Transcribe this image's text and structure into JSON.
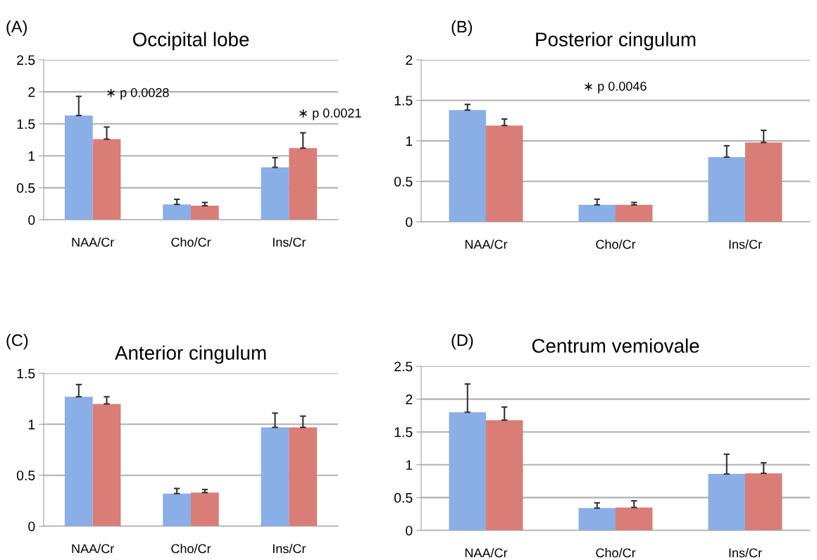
{
  "chart_data": [
    {
      "type": "bar",
      "title": "Occipital lobe",
      "categories": [
        "NAA/Cr",
        "Cho/Cr",
        "Ins/Cr"
      ],
      "ylim": [
        0,
        2.5
      ],
      "yticks": [
        0,
        0.5,
        1,
        1.5,
        2,
        2.5
      ],
      "grid": "y",
      "series": [
        {
          "color": "#8aaee6",
          "values": [
            1.63,
            0.24,
            0.82
          ],
          "errors": [
            [
              1.63,
              1.93
            ],
            [
              0.24,
              0.32
            ],
            [
              0.82,
              0.97
            ]
          ]
        },
        {
          "color": "#d97d76",
          "values": [
            1.26,
            0.22,
            1.12
          ],
          "errors": [
            [
              1.26,
              1.45
            ],
            [
              0.22,
              0.27
            ],
            [
              1.12,
              1.36
            ]
          ]
        }
      ],
      "annotations": [
        "(A)",
        "∗ p 0.0028",
        "∗ p 0.0021"
      ]
    },
    {
      "type": "bar",
      "title": "Posterior cingulum",
      "categories": [
        "NAA/Cr",
        "Cho/Cr",
        "Ins/Cr"
      ],
      "ylim": [
        0,
        2
      ],
      "yticks": [
        0,
        0.5,
        1,
        1.5,
        2
      ],
      "grid": "y",
      "series": [
        {
          "color": "#8aaee6",
          "values": [
            1.38,
            0.21,
            0.8
          ],
          "errors": [
            [
              1.38,
              1.45
            ],
            [
              0.21,
              0.28
            ],
            [
              0.8,
              0.94
            ]
          ]
        },
        {
          "color": "#d97d76",
          "values": [
            1.19,
            0.21,
            0.98
          ],
          "errors": [
            [
              1.19,
              1.27
            ],
            [
              0.21,
              0.24
            ],
            [
              0.98,
              1.13
            ]
          ]
        }
      ],
      "annotations": [
        "(B)",
        "∗ p 0.0046"
      ]
    },
    {
      "type": "bar",
      "title": "Anterior cingulum",
      "categories": [
        "NAA/Cr",
        "Cho/Cr",
        "Ins/Cr"
      ],
      "ylim": [
        0,
        1.5
      ],
      "yticks": [
        0,
        0.5,
        1,
        1.5
      ],
      "grid": "y",
      "series": [
        {
          "color": "#8aaee6",
          "values": [
            1.27,
            0.32,
            0.97
          ],
          "errors": [
            [
              1.27,
              1.39
            ],
            [
              0.32,
              0.37
            ],
            [
              0.97,
              1.11
            ]
          ]
        },
        {
          "color": "#d97d76",
          "values": [
            1.2,
            0.33,
            0.97
          ],
          "errors": [
            [
              1.2,
              1.27
            ],
            [
              0.33,
              0.36
            ],
            [
              0.97,
              1.08
            ]
          ]
        }
      ],
      "annotations": [
        "(C)"
      ]
    },
    {
      "type": "bar",
      "title": "Centrum vemiovale",
      "categories": [
        "NAA/Cr",
        "Cho/Cr",
        "Ins/Cr"
      ],
      "ylim": [
        0,
        2.5
      ],
      "yticks": [
        0,
        0.5,
        1,
        1.5,
        2,
        2.5
      ],
      "grid": "y",
      "series": [
        {
          "color": "#8aaee6",
          "values": [
            1.8,
            0.34,
            0.86
          ],
          "errors": [
            [
              1.8,
              2.23
            ],
            [
              0.34,
              0.42
            ],
            [
              0.86,
              1.16
            ]
          ]
        },
        {
          "color": "#d97d76",
          "values": [
            1.68,
            0.35,
            0.87
          ],
          "errors": [
            [
              1.68,
              1.88
            ],
            [
              0.35,
              0.45
            ],
            [
              0.87,
              1.03
            ]
          ]
        }
      ],
      "annotations": [
        "(D)"
      ]
    }
  ]
}
